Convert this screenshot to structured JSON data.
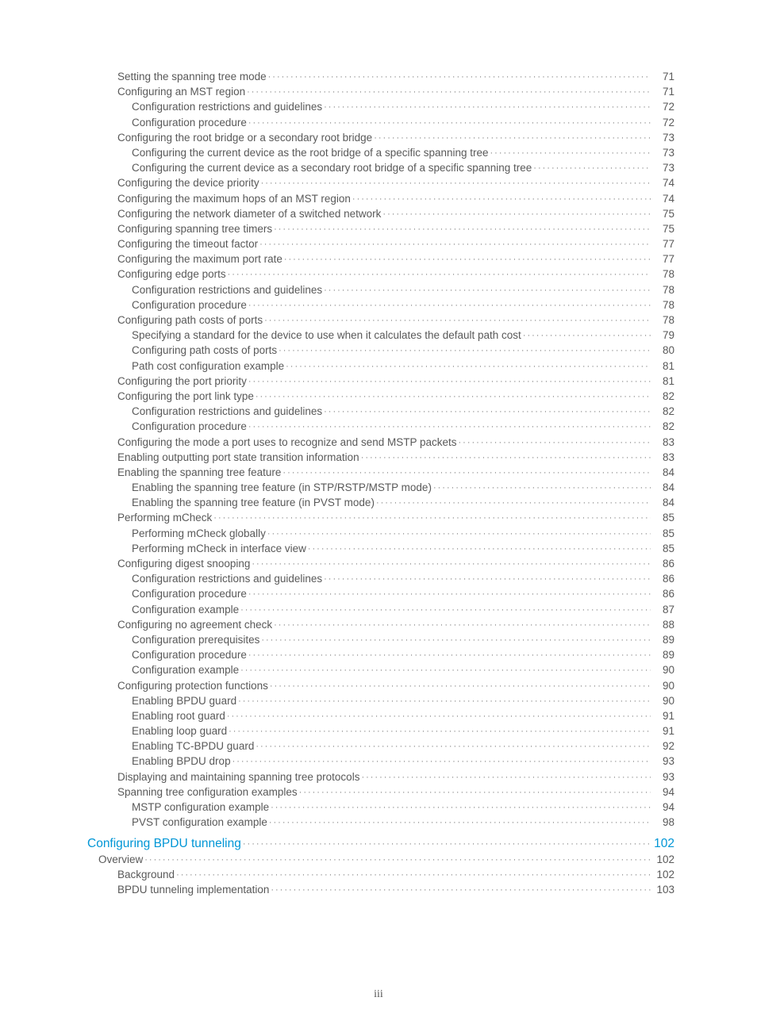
{
  "pageNumber": "iii",
  "colors": {
    "text": "#595959",
    "link": "#0096d6",
    "leader": "#7a7a7a",
    "background": "#ffffff"
  },
  "toc": [
    {
      "level": 2,
      "title": "Setting the spanning tree mode",
      "page": "71"
    },
    {
      "level": 2,
      "title": "Configuring an MST region",
      "page": "71"
    },
    {
      "level": 3,
      "title": "Configuration restrictions and guidelines",
      "page": "72"
    },
    {
      "level": 3,
      "title": "Configuration procedure",
      "page": "72"
    },
    {
      "level": 2,
      "title": "Configuring the root bridge or a secondary root bridge",
      "page": "73"
    },
    {
      "level": 3,
      "title": "Configuring the current device as the root bridge of a specific spanning tree",
      "page": "73"
    },
    {
      "level": 3,
      "title": "Configuring the current device as a secondary root bridge of a specific spanning tree",
      "page": "73"
    },
    {
      "level": 2,
      "title": "Configuring the device priority",
      "page": "74"
    },
    {
      "level": 2,
      "title": "Configuring the maximum hops of an MST region",
      "page": "74"
    },
    {
      "level": 2,
      "title": "Configuring the network diameter of a switched network",
      "page": "75"
    },
    {
      "level": 2,
      "title": "Configuring spanning tree timers",
      "page": "75"
    },
    {
      "level": 2,
      "title": "Configuring the timeout factor",
      "page": "77"
    },
    {
      "level": 2,
      "title": "Configuring the maximum port rate",
      "page": "77"
    },
    {
      "level": 2,
      "title": "Configuring edge ports",
      "page": "78"
    },
    {
      "level": 3,
      "title": "Configuration restrictions and guidelines",
      "page": "78"
    },
    {
      "level": 3,
      "title": "Configuration procedure",
      "page": "78"
    },
    {
      "level": 2,
      "title": "Configuring path costs of ports",
      "page": "78"
    },
    {
      "level": 3,
      "title": "Specifying a standard for the device to use when it calculates the default path cost",
      "page": "79"
    },
    {
      "level": 3,
      "title": "Configuring path costs of ports",
      "page": "80"
    },
    {
      "level": 3,
      "title": "Path cost configuration example",
      "page": "81"
    },
    {
      "level": 2,
      "title": "Configuring the port priority",
      "page": "81"
    },
    {
      "level": 2,
      "title": "Configuring the port link type",
      "page": "82"
    },
    {
      "level": 3,
      "title": "Configuration restrictions and guidelines",
      "page": "82"
    },
    {
      "level": 3,
      "title": "Configuration procedure",
      "page": "82"
    },
    {
      "level": 2,
      "title": "Configuring the mode a port uses to recognize and send MSTP packets",
      "page": "83"
    },
    {
      "level": 2,
      "title": "Enabling outputting port state transition information",
      "page": "83"
    },
    {
      "level": 2,
      "title": "Enabling the spanning tree feature",
      "page": "84"
    },
    {
      "level": 3,
      "title": "Enabling the spanning tree feature (in STP/RSTP/MSTP mode)",
      "page": "84"
    },
    {
      "level": 3,
      "title": "Enabling the spanning tree feature (in PVST mode)",
      "page": "84"
    },
    {
      "level": 2,
      "title": "Performing mCheck",
      "page": "85"
    },
    {
      "level": 3,
      "title": "Performing mCheck globally",
      "page": "85"
    },
    {
      "level": 3,
      "title": "Performing mCheck in interface view",
      "page": "85"
    },
    {
      "level": 2,
      "title": "Configuring digest snooping",
      "page": "86"
    },
    {
      "level": 3,
      "title": "Configuration restrictions and guidelines",
      "page": "86"
    },
    {
      "level": 3,
      "title": "Configuration procedure",
      "page": "86"
    },
    {
      "level": 3,
      "title": "Configuration example",
      "page": "87"
    },
    {
      "level": 2,
      "title": "Configuring no agreement check",
      "page": "88"
    },
    {
      "level": 3,
      "title": "Configuration prerequisites",
      "page": "89"
    },
    {
      "level": 3,
      "title": "Configuration procedure",
      "page": "89"
    },
    {
      "level": 3,
      "title": "Configuration example",
      "page": "90"
    },
    {
      "level": 2,
      "title": "Configuring protection functions",
      "page": "90"
    },
    {
      "level": 3,
      "title": "Enabling BPDU guard",
      "page": "90"
    },
    {
      "level": 3,
      "title": "Enabling root guard",
      "page": "91"
    },
    {
      "level": 3,
      "title": "Enabling loop guard",
      "page": "91"
    },
    {
      "level": 3,
      "title": "Enabling TC-BPDU guard",
      "page": "92"
    },
    {
      "level": 3,
      "title": "Enabling BPDU drop",
      "page": "93"
    },
    {
      "level": 2,
      "title": "Displaying and maintaining spanning tree protocols",
      "page": "93"
    },
    {
      "level": 2,
      "title": "Spanning tree configuration examples",
      "page": "94"
    },
    {
      "level": 3,
      "title": "MSTP configuration example",
      "page": "94"
    },
    {
      "level": 3,
      "title": "PVST configuration example",
      "page": "98"
    },
    {
      "level": 0,
      "chapter": true,
      "title": "Configuring BPDU tunneling",
      "page": "102"
    },
    {
      "level": 1,
      "title": "Overview",
      "page": "102"
    },
    {
      "level": 2,
      "title": "Background",
      "page": "102"
    },
    {
      "level": 2,
      "title": "BPDU tunneling implementation",
      "page": "103"
    }
  ]
}
